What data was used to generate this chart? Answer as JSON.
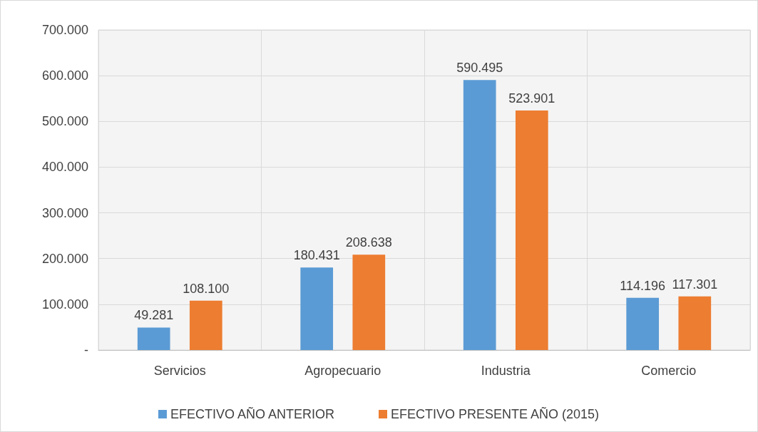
{
  "chart_data": {
    "type": "bar",
    "categories": [
      "Servicios",
      "Agropecuario",
      "Industria",
      "Comercio"
    ],
    "series": [
      {
        "name": "EFECTIVO AÑO ANTERIOR",
        "color": "#5b9bd5",
        "values": [
          49281,
          180431,
          590495,
          114196
        ],
        "value_labels": [
          "49.281",
          "180.431",
          "590.495",
          "114.196"
        ]
      },
      {
        "name": "EFECTIVO PRESENTE AÑO (2015)",
        "color": "#ed7d31",
        "values": [
          108100,
          208638,
          523901,
          117301
        ],
        "value_labels": [
          "108.100",
          "208.638",
          "523.901",
          "117.301"
        ]
      }
    ],
    "ylim": [
      0,
      700000
    ],
    "yticks": [
      {
        "value": 0,
        "label": "-"
      },
      {
        "value": 100000,
        "label": "100.000"
      },
      {
        "value": 200000,
        "label": "200.000"
      },
      {
        "value": 300000,
        "label": "300.000"
      },
      {
        "value": 400000,
        "label": "400.000"
      },
      {
        "value": 500000,
        "label": "500.000"
      },
      {
        "value": 600000,
        "label": "600.000"
      },
      {
        "value": 700000,
        "label": "700.000"
      }
    ],
    "grid": true,
    "legend": "bottom"
  }
}
